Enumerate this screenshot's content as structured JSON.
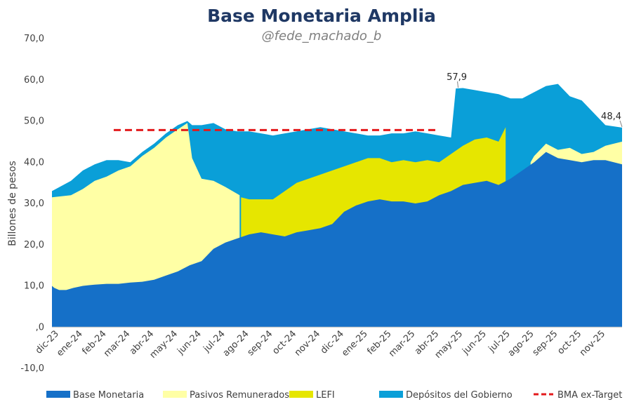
{
  "chart_data": {
    "type": "area",
    "title": "Base Monetaria Amplia",
    "subtitle": "@fede_machado_b",
    "ylabel": "Billones de pesos",
    "xlabel": "",
    "ylim": [
      -10,
      70
    ],
    "yticks": [
      {
        "value": 70,
        "label": "70,0"
      },
      {
        "value": 60,
        "label": "60,0"
      },
      {
        "value": 50,
        "label": "50,0"
      },
      {
        "value": 40,
        "label": "40,0"
      },
      {
        "value": 30,
        "label": "30,0"
      },
      {
        "value": 20,
        "label": "20,0"
      },
      {
        "value": 10,
        "label": "10,0"
      },
      {
        "value": 0,
        "label": ",0"
      },
      {
        "value": -10,
        "label": "-10,0"
      }
    ],
    "x_range": [
      0,
      24
    ],
    "xticks": [
      {
        "value": 0.0,
        "label": "dic-23"
      },
      {
        "value": 1.0,
        "label": "ene-24"
      },
      {
        "value": 2.0,
        "label": "feb-24"
      },
      {
        "value": 3.0,
        "label": "mar-24"
      },
      {
        "value": 4.0,
        "label": "abr-24"
      },
      {
        "value": 5.0,
        "label": "may-24"
      },
      {
        "value": 6.0,
        "label": "jun-24"
      },
      {
        "value": 7.0,
        "label": "jul-24"
      },
      {
        "value": 8.0,
        "label": "ago-24"
      },
      {
        "value": 9.0,
        "label": "sep-24"
      },
      {
        "value": 10.0,
        "label": "oct-24"
      },
      {
        "value": 11.0,
        "label": "nov-24"
      },
      {
        "value": 12.0,
        "label": "dic-24"
      },
      {
        "value": 13.0,
        "label": "ene-25"
      },
      {
        "value": 14.0,
        "label": "feb-25"
      },
      {
        "value": 15.0,
        "label": "mar-25"
      },
      {
        "value": 16.0,
        "label": "abr-25"
      },
      {
        "value": 17.0,
        "label": "may-25"
      },
      {
        "value": 18.0,
        "label": "jun-25"
      },
      {
        "value": 19.0,
        "label": "jul-25"
      },
      {
        "value": 20.0,
        "label": "ago-25"
      },
      {
        "value": 21.0,
        "label": "sep-25"
      },
      {
        "value": 22.0,
        "label": "oct-25"
      },
      {
        "value": 23.0,
        "label": "nov-25"
      }
    ],
    "series": [
      {
        "name": "Base Monetaria",
        "color": "#1570c8",
        "points": [
          [
            -0.3,
            10.0
          ],
          [
            -0.2,
            9.5
          ],
          [
            0.0,
            9.0
          ],
          [
            0.3,
            9.0
          ],
          [
            0.6,
            9.5
          ],
          [
            1.0,
            10.0
          ],
          [
            1.5,
            10.3
          ],
          [
            2.0,
            10.5
          ],
          [
            2.5,
            10.5
          ],
          [
            3.0,
            10.8
          ],
          [
            3.5,
            11.0
          ],
          [
            4.0,
            11.5
          ],
          [
            4.5,
            12.5
          ],
          [
            5.0,
            13.5
          ],
          [
            5.5,
            15.0
          ],
          [
            6.0,
            16.0
          ],
          [
            6.5,
            19.0
          ],
          [
            7.0,
            20.5
          ],
          [
            7.5,
            21.5
          ],
          [
            8.0,
            22.5
          ],
          [
            8.5,
            23.0
          ],
          [
            9.0,
            22.5
          ],
          [
            9.5,
            22.0
          ],
          [
            10.0,
            23.0
          ],
          [
            10.5,
            23.5
          ],
          [
            11.0,
            24.0
          ],
          [
            11.5,
            25.0
          ],
          [
            12.0,
            28.0
          ],
          [
            12.5,
            29.5
          ],
          [
            13.0,
            30.5
          ],
          [
            13.5,
            31.0
          ],
          [
            14.0,
            30.5
          ],
          [
            14.5,
            30.5
          ],
          [
            15.0,
            30.0
          ],
          [
            15.5,
            30.5
          ],
          [
            16.0,
            32.0
          ],
          [
            16.5,
            33.0
          ],
          [
            17.0,
            34.5
          ],
          [
            17.5,
            35.0
          ],
          [
            18.0,
            35.5
          ],
          [
            18.5,
            34.5
          ],
          [
            19.0,
            36.0
          ],
          [
            19.5,
            38.0
          ],
          [
            20.0,
            40.0
          ],
          [
            20.5,
            42.5
          ],
          [
            21.0,
            41.0
          ],
          [
            21.5,
            40.5
          ],
          [
            22.0,
            40.0
          ],
          [
            22.5,
            40.5
          ],
          [
            23.0,
            40.5
          ],
          [
            23.7,
            39.5
          ]
        ]
      },
      {
        "name": "Pasivos Remunerados",
        "color": "#ffffa5",
        "points": [
          [
            -0.3,
            31.5
          ],
          [
            0.5,
            32.0
          ],
          [
            1.0,
            33.5
          ],
          [
            1.5,
            35.5
          ],
          [
            2.0,
            36.5
          ],
          [
            2.5,
            38.0
          ],
          [
            3.0,
            39.0
          ],
          [
            3.5,
            41.5
          ],
          [
            4.0,
            43.5
          ],
          [
            4.5,
            46.0
          ],
          [
            5.0,
            48.0
          ],
          [
            5.4,
            49.5
          ],
          [
            5.6,
            41.0
          ],
          [
            6.0,
            36.0
          ],
          [
            6.5,
            35.5
          ],
          [
            7.0,
            34.0
          ],
          [
            7.6,
            32.0
          ],
          [
            7.65,
            null
          ],
          [
            19.8,
            null
          ],
          [
            19.85,
            40.0
          ],
          [
            20.0,
            41.5
          ],
          [
            20.5,
            44.5
          ],
          [
            21.0,
            43.0
          ],
          [
            21.5,
            43.5
          ],
          [
            22.0,
            42.0
          ],
          [
            22.5,
            42.5
          ],
          [
            23.0,
            44.0
          ],
          [
            23.7,
            45.0
          ]
        ]
      },
      {
        "name": "LEFI",
        "color": "#e6e600",
        "points": [
          [
            7.65,
            null
          ],
          [
            7.66,
            31.5
          ],
          [
            8.0,
            31.0
          ],
          [
            8.5,
            31.0
          ],
          [
            9.0,
            31.0
          ],
          [
            9.5,
            33.0
          ],
          [
            10.0,
            35.0
          ],
          [
            10.5,
            36.0
          ],
          [
            11.0,
            37.0
          ],
          [
            11.5,
            38.0
          ],
          [
            12.0,
            39.0
          ],
          [
            12.5,
            40.0
          ],
          [
            13.0,
            41.0
          ],
          [
            13.5,
            41.0
          ],
          [
            14.0,
            40.0
          ],
          [
            14.5,
            40.5
          ],
          [
            15.0,
            40.0
          ],
          [
            15.5,
            40.5
          ],
          [
            16.0,
            40.0
          ],
          [
            16.5,
            42.0
          ],
          [
            17.0,
            44.0
          ],
          [
            17.5,
            45.5
          ],
          [
            18.0,
            46.0
          ],
          [
            18.5,
            45.0
          ],
          [
            18.8,
            48.5
          ],
          [
            18.9,
            null
          ]
        ]
      },
      {
        "name": "Depósitos del Gobierno",
        "color": "#0a9fd8",
        "points": [
          [
            -0.3,
            33.0
          ],
          [
            0.5,
            35.5
          ],
          [
            1.0,
            38.0
          ],
          [
            1.5,
            39.5
          ],
          [
            2.0,
            40.5
          ],
          [
            2.5,
            40.5
          ],
          [
            3.0,
            40.0
          ],
          [
            3.5,
            42.5
          ],
          [
            4.0,
            44.5
          ],
          [
            4.5,
            47.0
          ],
          [
            5.0,
            49.0
          ],
          [
            5.4,
            50.0
          ],
          [
            5.6,
            49.0
          ],
          [
            6.0,
            49.0
          ],
          [
            6.5,
            49.5
          ],
          [
            7.0,
            48.0
          ],
          [
            7.5,
            47.5
          ],
          [
            8.0,
            47.5
          ],
          [
            8.5,
            47.0
          ],
          [
            9.0,
            46.5
          ],
          [
            9.5,
            47.0
          ],
          [
            10.0,
            47.5
          ],
          [
            10.5,
            48.0
          ],
          [
            11.0,
            48.5
          ],
          [
            11.5,
            48.0
          ],
          [
            12.0,
            47.5
          ],
          [
            12.5,
            47.0
          ],
          [
            13.0,
            46.5
          ],
          [
            13.5,
            46.5
          ],
          [
            14.0,
            47.0
          ],
          [
            14.5,
            47.0
          ],
          [
            15.0,
            47.5
          ],
          [
            15.5,
            47.0
          ],
          [
            16.0,
            46.5
          ],
          [
            16.5,
            46.0
          ],
          [
            16.7,
            57.9
          ],
          [
            17.0,
            58.0
          ],
          [
            17.5,
            57.5
          ],
          [
            18.0,
            57.0
          ],
          [
            18.5,
            56.5
          ],
          [
            19.0,
            55.5
          ],
          [
            19.5,
            55.5
          ],
          [
            20.0,
            57.0
          ],
          [
            20.5,
            58.5
          ],
          [
            21.0,
            59.0
          ],
          [
            21.5,
            56.0
          ],
          [
            22.0,
            55.0
          ],
          [
            22.5,
            52.0
          ],
          [
            23.0,
            49.0
          ],
          [
            23.7,
            48.4
          ]
        ]
      }
    ],
    "reference_line": {
      "name": "BMA ex-Target",
      "color": "#e31a1c",
      "value": 47.8,
      "x_from": 2.3,
      "x_to": 15.9
    },
    "annotations": [
      {
        "text": "57,9",
        "x": 16.8,
        "y": 57.9
      },
      {
        "text": "48,4",
        "x": 23.7,
        "y": 48.4
      }
    ],
    "legend": [
      {
        "label": "Base Monetaria",
        "color": "#1570c8",
        "kind": "box"
      },
      {
        "label": "Pasivos Remunerados",
        "color": "#ffffa5",
        "kind": "box"
      },
      {
        "label": "LEFI",
        "color": "#e6e600",
        "kind": "box"
      },
      {
        "label": "Depósitos del Gobierno",
        "color": "#0a9fd8",
        "kind": "box"
      },
      {
        "label": "BMA ex-Target",
        "color": "#e31a1c",
        "kind": "dash"
      }
    ],
    "legend_position": "bottom"
  }
}
